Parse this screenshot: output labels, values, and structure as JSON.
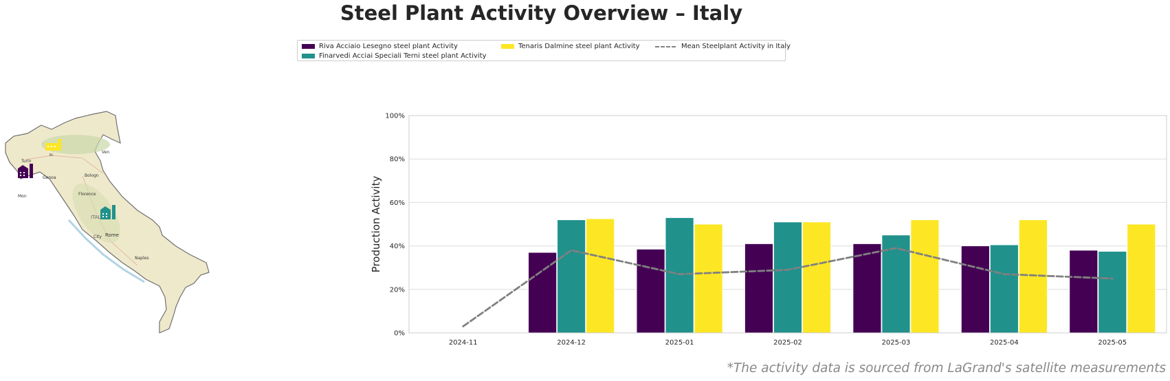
{
  "title": "Steel Plant Activity Overview – Italy",
  "legend": {
    "items": [
      {
        "label": "Riva Acciaio Lesegno steel plant Activity",
        "color": "#440154",
        "kind": "bar"
      },
      {
        "label": "Finarvedi Acciai Speciali Terni steel plant Activity",
        "color": "#21918c",
        "kind": "bar"
      },
      {
        "label": "Tenaris Dalmine steel plant Activity",
        "color": "#fde725",
        "kind": "bar"
      },
      {
        "label": "Mean Steelplant Activity in Italy",
        "color": "#808080",
        "kind": "dashed-line"
      }
    ]
  },
  "map": {
    "labels": [
      "Turin",
      "Genoa",
      "Bologn",
      "Florence",
      "ITALY",
      "Rome",
      "City",
      "Naples",
      "Ven",
      "Mon",
      "Ri"
    ],
    "icons": [
      "factory-icon",
      "factory-icon",
      "factory-icon"
    ]
  },
  "chart_data": {
    "type": "bar",
    "categories": [
      "2024-11",
      "2024-12",
      "2025-01",
      "2025-02",
      "2025-03",
      "2025-04",
      "2025-05"
    ],
    "series": [
      {
        "name": "Riva Acciaio Lesegno steel plant Activity",
        "color": "#440154",
        "values": [
          null,
          37,
          38.5,
          41,
          41,
          40,
          38
        ]
      },
      {
        "name": "Finarvedi Acciai Speciali Terni steel plant Activity",
        "color": "#21918c",
        "values": [
          null,
          52,
          53,
          51,
          45,
          40.5,
          37.5
        ]
      },
      {
        "name": "Tenaris Dalmine steel plant Activity",
        "color": "#fde725",
        "values": [
          null,
          52.5,
          50,
          51,
          52,
          52,
          50
        ]
      }
    ],
    "line_series": {
      "name": "Mean Steelplant Activity in Italy",
      "color": "#808080",
      "style": "dashed",
      "values": [
        3,
        38,
        27,
        29,
        39,
        27,
        25
      ]
    },
    "ylabel": "Production Activity",
    "xlabel": "",
    "ylim": [
      0,
      100
    ],
    "yticks": [
      0,
      20,
      40,
      60,
      80,
      100
    ],
    "ytick_labels": [
      "0%",
      "20%",
      "40%",
      "60%",
      "80%",
      "100%"
    ],
    "grid": true,
    "legend_position": "top-center"
  },
  "footnote": "*The activity data is sourced from LaGrand's satellite measurements"
}
